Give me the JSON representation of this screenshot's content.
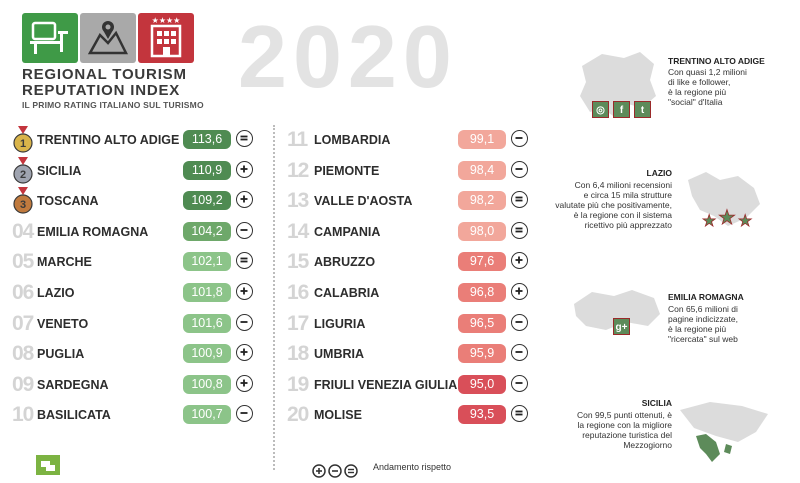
{
  "brand": {
    "title_line1": "REGIONAL TOURISM",
    "title_line2": "REPUTATION INDEX",
    "subtitle": "IL PRIMO RATING ITALIANO SUL TURISMO"
  },
  "year": "2020",
  "colors": {
    "dark_green": "#4f8b52",
    "mid_green": "#6ea86a",
    "light_green": "#8cc489",
    "salmon": "#f2a79b",
    "light_red": "#ea7e78",
    "red": "#d94f59",
    "logo_red": "#c3353d",
    "logo_gray": "#a9a9a9",
    "logo_green": "#3f9a47"
  },
  "rankings_left": [
    {
      "rank": "1",
      "name": "TRENTINO ALTO ADIGE",
      "score": "113,6",
      "trend": "equal",
      "medal": "gold",
      "color": "#4f8b52"
    },
    {
      "rank": "2",
      "name": "SICILIA",
      "score": "110,9",
      "trend": "up",
      "medal": "silver",
      "color": "#4f8b52"
    },
    {
      "rank": "3",
      "name": "TOSCANA",
      "score": "109,2",
      "trend": "up",
      "medal": "bronze",
      "color": "#4f8b52"
    },
    {
      "rank": "04",
      "name": "EMILIA ROMAGNA",
      "score": "104,2",
      "trend": "down",
      "medal": "",
      "color": "#6ea86a"
    },
    {
      "rank": "05",
      "name": "MARCHE",
      "score": "102,1",
      "trend": "equal",
      "medal": "",
      "color": "#8cc489"
    },
    {
      "rank": "06",
      "name": "LAZIO",
      "score": "101,8",
      "trend": "up",
      "medal": "",
      "color": "#8cc489"
    },
    {
      "rank": "07",
      "name": "VENETO",
      "score": "101,6",
      "trend": "down",
      "medal": "",
      "color": "#8cc489"
    },
    {
      "rank": "08",
      "name": "PUGLIA",
      "score": "100,9",
      "trend": "up",
      "medal": "",
      "color": "#8cc489"
    },
    {
      "rank": "09",
      "name": "SARDEGNA",
      "score": "100,8",
      "trend": "up",
      "medal": "",
      "color": "#8cc489"
    },
    {
      "rank": "10",
      "name": "BASILICATA",
      "score": "100,7",
      "trend": "down",
      "medal": "",
      "color": "#8cc489"
    }
  ],
  "rankings_right": [
    {
      "rank": "11",
      "name": "LOMBARDIA",
      "score": "99,1",
      "trend": "down",
      "color": "#f2a79b"
    },
    {
      "rank": "12",
      "name": "PIEMONTE",
      "score": "98,4",
      "trend": "down",
      "color": "#f2a79b"
    },
    {
      "rank": "13",
      "name": "VALLE D'AOSTA",
      "score": "98,2",
      "trend": "equal",
      "color": "#f2a79b"
    },
    {
      "rank": "14",
      "name": "CAMPANIA",
      "score": "98,0",
      "trend": "equal",
      "color": "#f2a79b"
    },
    {
      "rank": "15",
      "name": "ABRUZZO",
      "score": "97,6",
      "trend": "up",
      "color": "#ea7e78"
    },
    {
      "rank": "16",
      "name": "CALABRIA",
      "score": "96,8",
      "trend": "up",
      "color": "#ea7e78"
    },
    {
      "rank": "17",
      "name": "LIGURIA",
      "score": "96,5",
      "trend": "down",
      "color": "#ea7e78"
    },
    {
      "rank": "18",
      "name": "UMBRIA",
      "score": "95,9",
      "trend": "down",
      "color": "#ea7e78"
    },
    {
      "rank": "19",
      "name": "FRIULI VENEZIA GIULIA",
      "score": "95,0",
      "trend": "down",
      "color": "#d94f59"
    },
    {
      "rank": "20",
      "name": "MOLISE",
      "score": "93,5",
      "trend": "equal",
      "color": "#d94f59"
    }
  ],
  "sidebar": {
    "trentino_title": "TRENTINO ALTO ADIGE",
    "trentino_l1": "Con quasi 1,2 milioni",
    "trentino_l2": "di like e follower,",
    "trentino_l3": "è la regione più",
    "trentino_l4": "\"social\" d'Italia",
    "lazio_title": "LAZIO",
    "lazio_l1": "Con 6,4 milioni recensioni",
    "lazio_l2": "e circa 15 mila strutture",
    "lazio_l3": "valutate più che positivamente,",
    "lazio_l4": "è la regione con il sistema",
    "lazio_l5": "ricettivo più apprezzato",
    "emilia_title": "EMILIA ROMAGNA",
    "emilia_l1": "Con 65,6 milioni di",
    "emilia_l2": "pagine indicizzate,",
    "emilia_l3": "è la regione più",
    "emilia_l4": "\"ricercata\" sul web",
    "sicilia_title": "SICILIA",
    "sicilia_l1": "Con 99,5 punti ottenuti, è",
    "sicilia_l2": "la regione con la migliore",
    "sicilia_l3": "reputazione turistica del",
    "sicilia_l4": "Mezzogiorno",
    "social_icons": [
      "instagram-icon",
      "facebook-icon",
      "twitter-icon"
    ],
    "google_icon_text": "g+"
  },
  "legend": {
    "text": "Andamento rispetto"
  }
}
